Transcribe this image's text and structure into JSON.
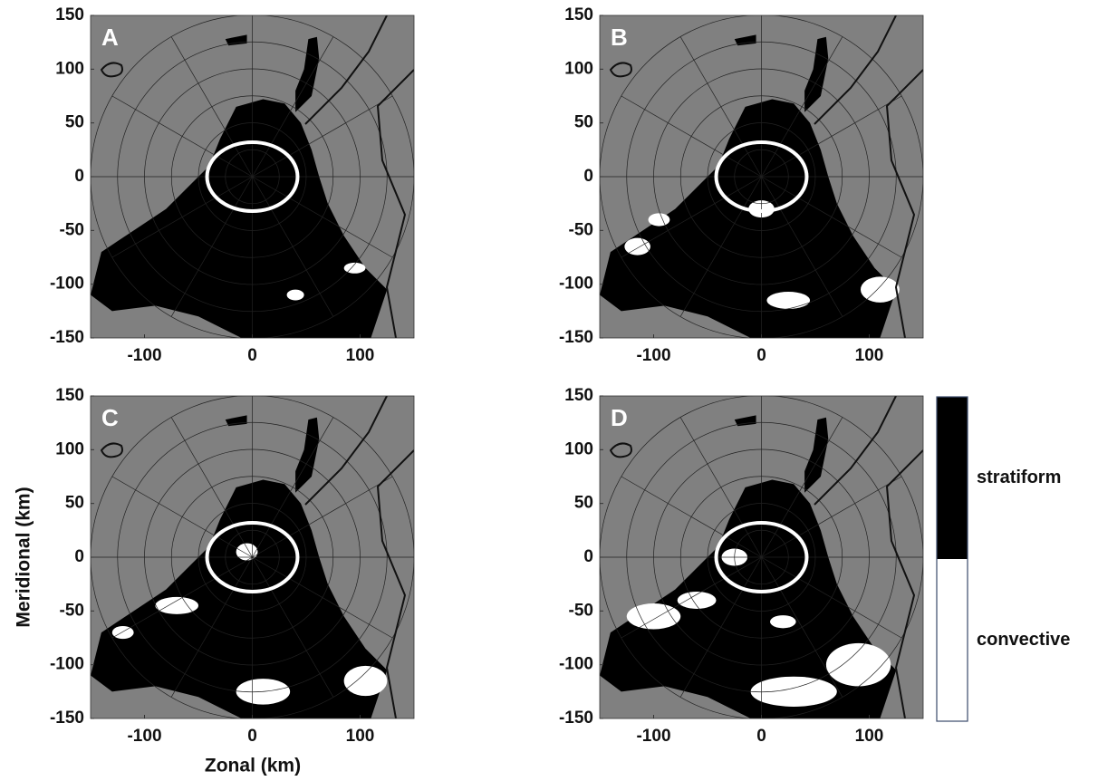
{
  "chart_data": [
    {
      "type": "map",
      "label": "A",
      "xlim": [
        -150,
        150
      ],
      "ylim": [
        -150,
        150
      ],
      "xticks": [
        -100,
        0,
        100
      ],
      "yticks": [
        -150,
        -100,
        -50,
        0,
        50,
        100,
        150
      ]
    },
    {
      "type": "map",
      "label": "B",
      "xlim": [
        -150,
        150
      ],
      "ylim": [
        -150,
        150
      ],
      "xticks": [
        -100,
        0,
        100
      ],
      "yticks": [
        -150,
        -100,
        -50,
        0,
        50,
        100,
        150
      ]
    },
    {
      "type": "map",
      "label": "C",
      "xlim": [
        -150,
        150
      ],
      "ylim": [
        -150,
        150
      ],
      "xticks": [
        -100,
        0,
        100
      ],
      "yticks": [
        -150,
        -100,
        -50,
        0,
        50,
        100,
        150
      ],
      "xlabel": "Zonal (km)",
      "ylabel": "Meridional (km)"
    },
    {
      "type": "map",
      "label": "D",
      "xlim": [
        -150,
        150
      ],
      "ylim": [
        -150,
        150
      ],
      "xticks": [
        -100,
        0,
        100
      ],
      "yticks": [
        -150,
        -100,
        -50,
        0,
        50,
        100,
        150
      ]
    }
  ],
  "colorbar": {
    "categories": [
      "stratiform",
      "convective"
    ],
    "colors": [
      "#000000",
      "#ffffff"
    ]
  }
}
